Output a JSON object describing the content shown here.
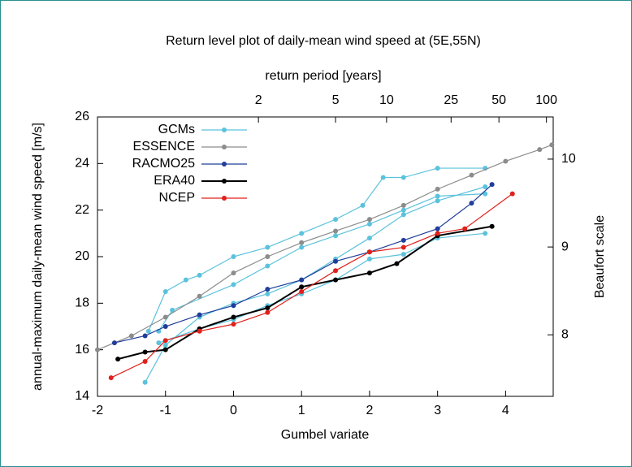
{
  "chart_data": {
    "type": "line",
    "title": "Return level plot of daily-mean wind speed at (5E,55N)",
    "x_label": "Gumbel variate",
    "y_label": "annual-maximum daily-mean wind speed [m/s]",
    "y2_label": "Beaufort scale",
    "x2_label": "return period [years]",
    "xlim": [
      -2,
      4.7
    ],
    "xticks": [
      -2,
      -1,
      0,
      1,
      2,
      3,
      4
    ],
    "ylim": [
      14,
      26
    ],
    "yticks": [
      14,
      16,
      18,
      20,
      22,
      24,
      26
    ],
    "y2lim": [
      7.3,
      10.48
    ],
    "y2ticks": [
      8,
      9,
      10
    ],
    "x2_transform": "return-period",
    "x2ticks": [
      2,
      5,
      10,
      25,
      50,
      100
    ],
    "legend": "top-left",
    "series": [
      {
        "name": "GCMs",
        "color": "#5bc2dc",
        "x": [
          -1.25,
          -1,
          -0.7,
          -0.5,
          0,
          0.5,
          1,
          1.5,
          1.9,
          2.2,
          2.5,
          3,
          3.7,
          null,
          -1.3,
          -1,
          -0.5,
          0,
          0.5,
          1,
          1.5,
          2,
          2.5,
          3,
          3.7,
          null,
          -1.1,
          -0.9,
          0,
          0.5,
          1,
          1.5,
          2,
          2.5,
          3,
          3.7,
          null,
          -1.1,
          -0.5,
          0,
          0.5,
          1,
          1.5,
          2,
          2.5,
          3,
          3.7
        ],
        "values": [
          16.8,
          18.5,
          19.0,
          19.2,
          20.0,
          20.4,
          21.0,
          21.6,
          22.2,
          23.4,
          23.4,
          23.8,
          23.8,
          null,
          14.6,
          16.2,
          17.4,
          18.0,
          18.4,
          19.0,
          19.9,
          20.8,
          21.8,
          22.4,
          23.0,
          null,
          16.8,
          17.7,
          18.8,
          19.6,
          20.4,
          20.9,
          21.4,
          22.0,
          22.6,
          22.7,
          null,
          16.3,
          16.9,
          17.3,
          17.9,
          18.4,
          19.0,
          19.9,
          20.1,
          20.8,
          21.0
        ]
      },
      {
        "name": "ESSENCE",
        "color": "#8c8c8c",
        "x": [
          -2,
          -1.5,
          -1,
          -0.5,
          0,
          0.5,
          1,
          1.5,
          2,
          2.5,
          3,
          3.5,
          4,
          4.5,
          4.68
        ],
        "values": [
          16.0,
          16.6,
          17.4,
          18.3,
          19.3,
          20.0,
          20.6,
          21.1,
          21.6,
          22.2,
          22.9,
          23.5,
          24.1,
          24.6,
          24.8
        ]
      },
      {
        "name": "RACMO25",
        "color": "#1f3d99",
        "x": [
          -1.75,
          -1.3,
          -1,
          -0.5,
          0,
          0.5,
          1,
          1.5,
          2,
          2.5,
          3,
          3.5,
          3.8
        ],
        "values": [
          16.3,
          16.6,
          17.0,
          17.5,
          17.9,
          18.6,
          19.0,
          19.8,
          20.2,
          20.7,
          21.2,
          22.3,
          23.1
        ]
      },
      {
        "name": "ERA40",
        "color": "#000000",
        "x": [
          -1.7,
          -1.3,
          -1,
          -0.5,
          0,
          0.5,
          1,
          1.5,
          2,
          2.4,
          3,
          3.8
        ],
        "values": [
          15.6,
          15.9,
          16.0,
          16.9,
          17.4,
          17.8,
          18.7,
          19.0,
          19.3,
          19.7,
          20.9,
          21.3
        ]
      },
      {
        "name": "NCEP",
        "color": "#e0201b",
        "x": [
          -1.8,
          -1.3,
          -1,
          -0.5,
          0,
          0.5,
          1,
          1.5,
          2,
          2.5,
          3,
          3.4,
          4.1
        ],
        "values": [
          14.8,
          15.5,
          16.4,
          16.8,
          17.1,
          17.6,
          18.5,
          19.4,
          20.2,
          20.4,
          21.0,
          21.2,
          22.7
        ]
      }
    ]
  }
}
